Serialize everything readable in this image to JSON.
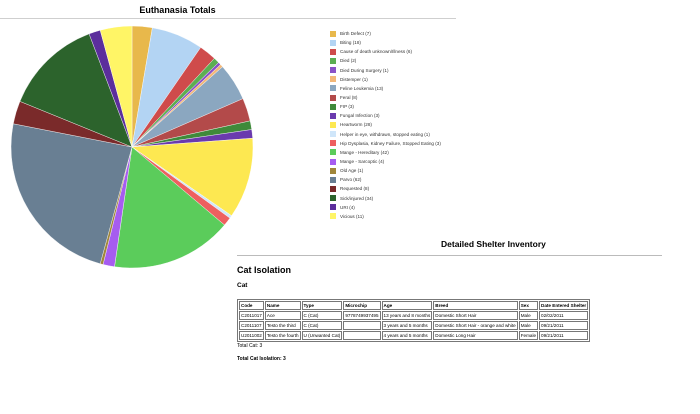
{
  "chart_data": {
    "type": "pie",
    "title": "Euthanasia Totals",
    "legend_placement": "right",
    "slices": [
      {
        "label": "Birth Defect (7)",
        "value": 7,
        "color": "#e8b84b"
      },
      {
        "label": "Biting (18)",
        "value": 18,
        "color": "#b3d4f3"
      },
      {
        "label": "Cause of death unknown/Illness (6)",
        "value": 6,
        "color": "#cf4b4b"
      },
      {
        "label": "Died (2)",
        "value": 2,
        "color": "#5cae52"
      },
      {
        "label": "Died During Surgery (1)",
        "value": 1,
        "color": "#8a52c8"
      },
      {
        "label": "Distemper (1)",
        "value": 1,
        "color": "#f3b879"
      },
      {
        "label": "Feline Leukemia (13)",
        "value": 13,
        "color": "#8ba7c0"
      },
      {
        "label": "Feral (8)",
        "value": 8,
        "color": "#b34a4a"
      },
      {
        "label": "FIP (3)",
        "value": 3,
        "color": "#3f8a3a"
      },
      {
        "label": "Fungal Infection (3)",
        "value": 3,
        "color": "#6a3aae"
      },
      {
        "label": "Heartworm (28)",
        "value": 28,
        "color": "#fde851"
      },
      {
        "label": "Helper in eye, withdrawn, stopped eating (1)",
        "value": 1,
        "color": "#cfe6fa"
      },
      {
        "label": "Hip Dysplasia, Kidney Failure, Stopped Eating (3)",
        "value": 3,
        "color": "#ee5f5f"
      },
      {
        "label": "Mange - Hereditary (42)",
        "value": 42,
        "color": "#5bcc5b"
      },
      {
        "label": "Mange - Sarcoptic (4)",
        "value": 4,
        "color": "#a65cf0"
      },
      {
        "label": "Old Age (1)",
        "value": 1,
        "color": "#a0863a"
      },
      {
        "label": "Parvo (62)",
        "value": 62,
        "color": "#697f93"
      },
      {
        "label": "Requested (8)",
        "value": 8,
        "color": "#7a2a2a"
      },
      {
        "label": "Sick/injured (34)",
        "value": 34,
        "color": "#2c632c"
      },
      {
        "label": "URI (4)",
        "value": 4,
        "color": "#5b2e9c"
      },
      {
        "label": "Vicious (11)",
        "value": 11,
        "color": "#fff566"
      }
    ]
  },
  "inventory": {
    "title": "Detailed Shelter Inventory",
    "location": "Cat Isolation",
    "species": "Cat",
    "columns": [
      "Code",
      "Name",
      "Type",
      "Microchip",
      "Age",
      "Breed",
      "Sex",
      "Date Entered Shelter"
    ],
    "rows": [
      [
        "C2011017",
        "Ace",
        "C (Cat)",
        "9778749937495",
        "13 years and 8 months",
        "Domestic Short Hair",
        "Male",
        "02/02/2011"
      ],
      [
        "C2011107",
        "Testo the third",
        "C (Cat)",
        "",
        "3 years and 5 months",
        "Domestic Short Hair - orange and white",
        "Male",
        "09/21/2011"
      ],
      [
        "U2011002",
        "Testo the fourth",
        "U (Unwanted Cat)",
        "",
        "4 years and 5 months",
        "Domestic Long Hair",
        "Female",
        "09/21/2011"
      ]
    ],
    "total_species": "Total Cat: 3",
    "total_location": "Total Cat Isolation: 3"
  }
}
